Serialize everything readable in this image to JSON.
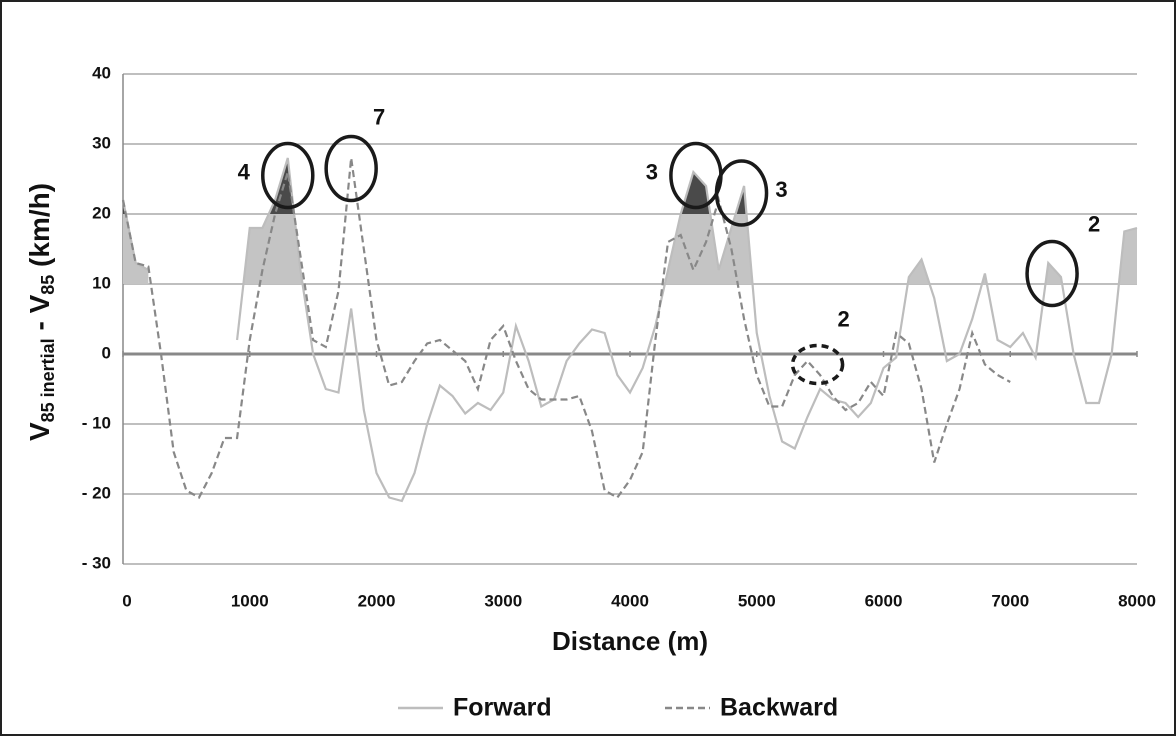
{
  "chart_data": {
    "type": "line",
    "ylabel_parts": [
      "V",
      "85 inertial",
      " - V",
      "85",
      " (km/h)"
    ],
    "xlabel": "Distance (m)",
    "x": [
      0,
      100,
      200,
      300,
      400,
      500,
      600,
      700,
      800,
      900,
      1000,
      1100,
      1200,
      1300,
      1400,
      1500,
      1600,
      1700,
      1800,
      1900,
      2000,
      2100,
      2200,
      2300,
      2400,
      2500,
      2600,
      2700,
      2800,
      2900,
      3000,
      3100,
      3200,
      3300,
      3400,
      3500,
      3600,
      3700,
      3800,
      3900,
      4000,
      4100,
      4200,
      4300,
      4400,
      4500,
      4600,
      4700,
      4800,
      4900,
      5000,
      5100,
      5200,
      5300,
      5400,
      5500,
      5600,
      5700,
      5800,
      5900,
      6000,
      6100,
      6200,
      6300,
      6400,
      6500,
      6600,
      6700,
      6800,
      6900,
      7000,
      7100,
      7200,
      7300,
      7400,
      7500,
      7600,
      7700,
      7800,
      7900,
      8000
    ],
    "series": [
      {
        "name": "Forward",
        "color": "#bdbdbd",
        "dash": false,
        "values": [
          22,
          13,
          12,
          null,
          null,
          null,
          null,
          null,
          null,
          2,
          18,
          18,
          22,
          28,
          12,
          0,
          -5,
          -5.5,
          6.5,
          -8,
          -17,
          -20.5,
          -21,
          -17,
          -10,
          -4.5,
          -6,
          -8.5,
          -7,
          -8,
          -5.5,
          4,
          -1,
          -7.5,
          -6.5,
          -1,
          1.5,
          3.5,
          3,
          -3,
          -5.5,
          -2,
          4,
          12,
          20,
          26,
          24,
          12,
          18,
          24,
          3,
          -6,
          -12.5,
          -13.5,
          -9,
          -5,
          -6.5,
          -7,
          -9,
          -7,
          -2,
          -0.5,
          11,
          13.5,
          8,
          -1,
          0,
          5,
          11.5,
          2,
          1,
          3,
          -0.5,
          13,
          11,
          0,
          -7,
          -7,
          0,
          17.5,
          18
        ]
      },
      {
        "name": "Backward",
        "color": "#888888",
        "dash": true,
        "values": [
          22,
          13,
          12.5,
          0,
          -14,
          -19.5,
          -20.5,
          -17,
          -12,
          -12,
          2,
          12,
          20,
          26,
          14,
          2,
          1,
          9,
          28,
          15,
          2,
          -4.5,
          -4,
          -1,
          1.5,
          2,
          0.5,
          -1,
          -5,
          2,
          4,
          -1,
          -5,
          -6.5,
          -6.5,
          -6.5,
          -6,
          -11,
          -19.5,
          -20.5,
          -18,
          -14,
          2,
          16,
          17,
          12,
          16,
          22,
          15,
          5,
          -3,
          -7.5,
          -7.5,
          -3,
          -1,
          -3,
          -6,
          -8,
          -7,
          -4,
          -6,
          3,
          1.5,
          -5,
          -15.5,
          -10,
          -5,
          3,
          -1.5,
          -3,
          -4,
          null,
          null,
          null,
          null,
          null,
          null,
          null,
          null,
          null,
          null
        ]
      }
    ],
    "xlim": [
      0,
      8000
    ],
    "xticks": [
      0,
      1000,
      2000,
      3000,
      4000,
      5000,
      6000,
      7000,
      8000
    ],
    "ylim": [
      -30,
      40
    ],
    "yticks": [
      {
        "value": -30,
        "label": "- 30"
      },
      {
        "value": -20,
        "label": "- 20"
      },
      {
        "value": -10,
        "label": "- 10"
      },
      0,
      10,
      20,
      30,
      40
    ],
    "grid": true,
    "shade_thresholds": [
      10,
      20
    ],
    "annotations": [
      {
        "text": "4",
        "x": 1300,
        "y": 25.5
      },
      {
        "text": "7",
        "x": 1800,
        "y": 26.5
      },
      {
        "text": "3",
        "x": 4520,
        "y": 25.5
      },
      {
        "text": "3",
        "x": 4880,
        "y": 23
      },
      {
        "text": "2",
        "x": 5480,
        "y": -1.5,
        "dashed": true
      },
      {
        "text": "2",
        "x": 7330,
        "y": 11.5
      }
    ],
    "legend": "bottom"
  }
}
